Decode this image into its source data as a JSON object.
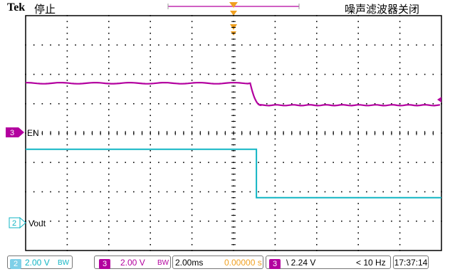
{
  "header": {
    "brand": "Tek",
    "state": "停止",
    "filter_status": "噪声滤波器关闭"
  },
  "channels": [
    {
      "number": "3",
      "label": "EN",
      "color": "#b3009f"
    },
    {
      "number": "2",
      "label": "Vout",
      "color": "#11b5c4"
    }
  ],
  "marker_colors": {
    "trigger": "#f0a020",
    "ch2_badge": "#7fd0e8"
  },
  "waveform_data": {
    "divisions": {
      "x": 10,
      "y": 8
    },
    "ch3_EN": {
      "high_div": 2.3,
      "low_div": 3.05,
      "fall_start_div": 5.4,
      "fall_end_div": 5.65
    },
    "ch2_Vout": {
      "high_div": 4.55,
      "low_div": 6.2,
      "fall_div": 5.55
    }
  },
  "status": {
    "ch2_scale": "2.00 V",
    "ch2_bw": "BW",
    "ch3_badge": "3",
    "ch3_scale": "2.00 V",
    "ch3_bw": "BW",
    "timebase": "2.00ms",
    "position": "0.00000 s",
    "trig_badge": "3",
    "trig_slope": "\\ 2.24 V",
    "freq": "< 10 Hz",
    "time": "17:37:14"
  }
}
